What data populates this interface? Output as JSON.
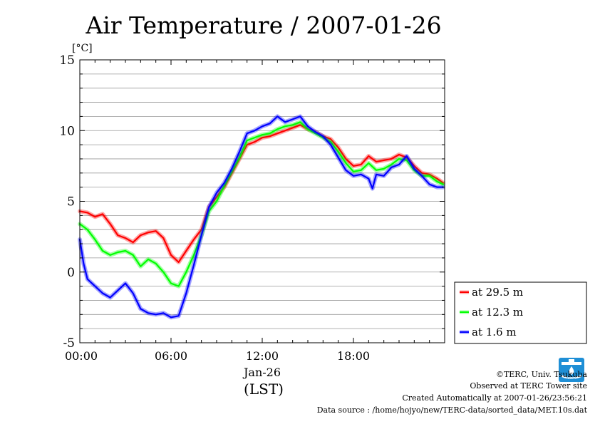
{
  "chart_data": {
    "type": "line",
    "title": "Air Temperature / 2007-01-26",
    "ylabel": "[°C]",
    "xlabel_date": "Jan-26",
    "xlabel_tz": "(LST)",
    "ylim": [
      -5,
      15
    ],
    "xlim": [
      0,
      24
    ],
    "y_ticks": [
      {
        "value": -5,
        "label": "-5"
      },
      {
        "value": 0,
        "label": "0"
      },
      {
        "value": 5,
        "label": "5"
      },
      {
        "value": 10,
        "label": "10"
      },
      {
        "value": 15,
        "label": "15"
      }
    ],
    "x_ticks": [
      {
        "value": 0,
        "label": "00:00"
      },
      {
        "value": 6,
        "label": "06:00"
      },
      {
        "value": 12,
        "label": "12:00"
      },
      {
        "value": 18,
        "label": "18:00"
      }
    ],
    "grid": true,
    "legend_position": "right",
    "series": [
      {
        "name": "at 29.5 m",
        "color": "#ff0000",
        "x": [
          0,
          0.5,
          1.0,
          1.5,
          2.0,
          2.5,
          3.0,
          3.5,
          4.0,
          4.5,
          5.0,
          5.5,
          6.0,
          6.5,
          7.0,
          7.5,
          8.0,
          8.5,
          9.0,
          9.5,
          10.0,
          10.5,
          11.0,
          11.5,
          12.0,
          12.5,
          13.0,
          13.5,
          14.0,
          14.5,
          15.0,
          15.5,
          16.0,
          16.5,
          17.0,
          17.5,
          18.0,
          18.5,
          19.0,
          19.5,
          20.0,
          20.5,
          21.0,
          21.5,
          22.0,
          22.5,
          23.0,
          23.5,
          23.9
        ],
        "y": [
          4.3,
          4.2,
          3.9,
          4.1,
          3.4,
          2.6,
          2.4,
          2.1,
          2.6,
          2.8,
          2.9,
          2.4,
          1.2,
          0.7,
          1.5,
          2.3,
          3.0,
          4.6,
          5.3,
          6.0,
          7.0,
          8.0,
          9.0,
          9.2,
          9.5,
          9.6,
          9.8,
          10.0,
          10.2,
          10.4,
          10.1,
          9.9,
          9.6,
          9.4,
          8.8,
          8.0,
          7.5,
          7.6,
          8.2,
          7.8,
          7.9,
          8.0,
          8.3,
          8.1,
          7.5,
          7.0,
          6.9,
          6.6,
          6.3
        ]
      },
      {
        "name": "at 12.3 m",
        "color": "#00ff00",
        "x": [
          0,
          0.5,
          1.0,
          1.5,
          2.0,
          2.5,
          3.0,
          3.5,
          4.0,
          4.5,
          5.0,
          5.5,
          6.0,
          6.5,
          7.0,
          7.5,
          8.0,
          8.5,
          9.0,
          9.5,
          10.0,
          10.5,
          11.0,
          11.5,
          12.0,
          12.5,
          13.0,
          13.5,
          14.0,
          14.5,
          15.0,
          15.5,
          16.0,
          16.5,
          17.0,
          17.5,
          18.0,
          18.5,
          19.0,
          19.5,
          20.0,
          20.5,
          21.0,
          21.5,
          22.0,
          22.5,
          23.0,
          23.5,
          23.9
        ],
        "y": [
          3.4,
          3.0,
          2.3,
          1.5,
          1.2,
          1.4,
          1.5,
          1.2,
          0.4,
          0.9,
          0.6,
          0.0,
          -0.8,
          -1.0,
          0.0,
          1.2,
          2.6,
          4.3,
          5.0,
          6.1,
          7.1,
          8.1,
          9.3,
          9.5,
          9.7,
          9.8,
          10.1,
          10.3,
          10.4,
          10.6,
          10.1,
          9.8,
          9.5,
          9.2,
          8.5,
          7.7,
          7.1,
          7.2,
          7.7,
          7.2,
          7.3,
          7.6,
          8.0,
          7.9,
          7.2,
          6.8,
          6.8,
          6.4,
          6.2
        ]
      },
      {
        "name": "at 1.6 m",
        "color": "#0000ff",
        "x": [
          0,
          0.25,
          0.5,
          1.0,
          1.5,
          2.0,
          2.5,
          3.0,
          3.5,
          4.0,
          4.5,
          5.0,
          5.5,
          6.0,
          6.5,
          7.0,
          7.5,
          8.0,
          8.5,
          9.0,
          9.5,
          10.0,
          10.5,
          11.0,
          11.5,
          12.0,
          12.5,
          13.0,
          13.5,
          14.0,
          14.5,
          15.0,
          15.5,
          16.0,
          16.5,
          17.0,
          17.5,
          18.0,
          18.5,
          19.0,
          19.25,
          19.5,
          20.0,
          20.5,
          21.0,
          21.5,
          22.0,
          22.5,
          23.0,
          23.5,
          23.9
        ],
        "y": [
          2.3,
          0.6,
          -0.5,
          -1.0,
          -1.5,
          -1.8,
          -1.3,
          -0.8,
          -1.5,
          -2.6,
          -2.9,
          -3.0,
          -2.9,
          -3.2,
          -3.1,
          -1.5,
          0.5,
          2.6,
          4.6,
          5.6,
          6.3,
          7.3,
          8.5,
          9.8,
          10.0,
          10.3,
          10.5,
          11.0,
          10.6,
          10.8,
          11.0,
          10.3,
          9.9,
          9.6,
          9.0,
          8.1,
          7.2,
          6.8,
          6.9,
          6.6,
          5.9,
          6.9,
          6.8,
          7.4,
          7.6,
          8.2,
          7.3,
          6.8,
          6.2,
          6.0,
          6.0
        ]
      }
    ]
  },
  "credits": {
    "copyright": "©TERC, Univ. Tsukuba",
    "observed": "Observed at TERC Tower site",
    "created": "Created Automatically at 2007-01-26/23:56:21",
    "source": "Data source : /home/hojyo/new/TERC-data/sorted_data/MET.10s.dat"
  },
  "logo": {
    "text": "TERC",
    "color": "#1f8fd6"
  }
}
